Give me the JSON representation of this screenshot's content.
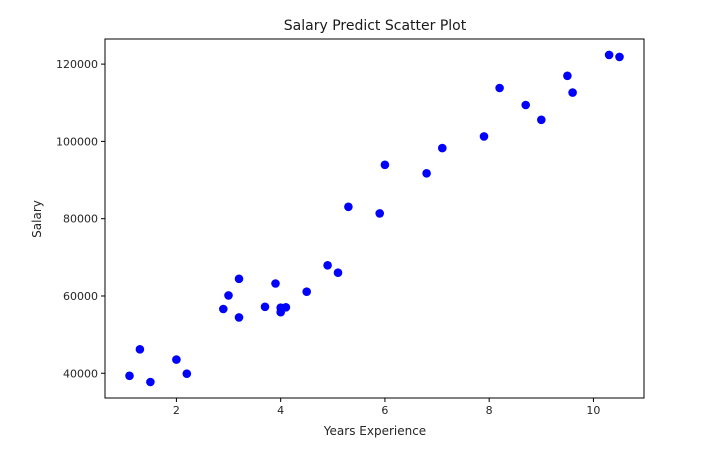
{
  "chart_data": {
    "type": "scatter",
    "title": "Salary Predict Scatter Plot",
    "xlabel": "Years Experience",
    "ylabel": "Salary",
    "xlim": [
      0.63,
      10.97
    ],
    "ylim": [
      33600,
      126500
    ],
    "xticks": [
      2,
      4,
      6,
      8,
      10
    ],
    "yticks": [
      40000,
      60000,
      80000,
      100000,
      120000
    ],
    "grid": false,
    "marker_color": "#0000ff",
    "points": [
      {
        "x": 1.1,
        "y": 39343
      },
      {
        "x": 1.3,
        "y": 46205
      },
      {
        "x": 1.5,
        "y": 37731
      },
      {
        "x": 2.0,
        "y": 43525
      },
      {
        "x": 2.2,
        "y": 39891
      },
      {
        "x": 2.9,
        "y": 56642
      },
      {
        "x": 3.0,
        "y": 60150
      },
      {
        "x": 3.2,
        "y": 54445
      },
      {
        "x": 3.2,
        "y": 64445
      },
      {
        "x": 3.7,
        "y": 57189
      },
      {
        "x": 3.9,
        "y": 63218
      },
      {
        "x": 4.0,
        "y": 55794
      },
      {
        "x": 4.0,
        "y": 56957
      },
      {
        "x": 4.1,
        "y": 57081
      },
      {
        "x": 4.5,
        "y": 61111
      },
      {
        "x": 4.9,
        "y": 67938
      },
      {
        "x": 5.1,
        "y": 66029
      },
      {
        "x": 5.3,
        "y": 83088
      },
      {
        "x": 5.9,
        "y": 81363
      },
      {
        "x": 6.0,
        "y": 93940
      },
      {
        "x": 6.8,
        "y": 91738
      },
      {
        "x": 7.1,
        "y": 98273
      },
      {
        "x": 7.9,
        "y": 101302
      },
      {
        "x": 8.2,
        "y": 113812
      },
      {
        "x": 8.7,
        "y": 109431
      },
      {
        "x": 9.0,
        "y": 105582
      },
      {
        "x": 9.5,
        "y": 116969
      },
      {
        "x": 9.6,
        "y": 112635
      },
      {
        "x": 10.3,
        "y": 122391
      },
      {
        "x": 10.5,
        "y": 121872
      }
    ]
  }
}
